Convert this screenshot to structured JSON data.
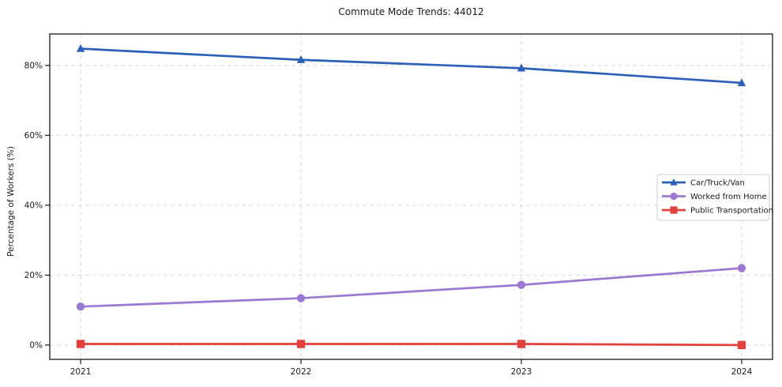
{
  "chart_data": {
    "type": "line",
    "title": "Commute Mode Trends: 44012",
    "xlabel": "",
    "ylabel": "Percentage of Workers (%)",
    "x": [
      2021,
      2022,
      2023,
      2024
    ],
    "x_tick_labels": [
      "2021",
      "2022",
      "2023",
      "2024"
    ],
    "y_ticks": [
      0,
      20,
      40,
      60,
      80
    ],
    "y_tick_labels": [
      "0%",
      "20%",
      "40%",
      "60%",
      "80%"
    ],
    "xlim": [
      2020.86,
      2024.14
    ],
    "ylim": [
      -4.1,
      89.0
    ],
    "grid": true,
    "grid_style": "dashed",
    "legend_position": "center-right",
    "series": [
      {
        "name": "Car/Truck/Van",
        "color": "#2b5fb8",
        "marker": "triangle",
        "values": [
          84.8,
          81.6,
          79.2,
          75.0
        ]
      },
      {
        "name": "Worked from Home",
        "color": "#9b79d2",
        "marker": "circle",
        "values": [
          11.0,
          13.4,
          17.2,
          22.0
        ]
      },
      {
        "name": "Public Transportation",
        "color": "#e2403d",
        "marker": "square",
        "values": [
          0.3,
          0.3,
          0.3,
          0.0
        ]
      }
    ],
    "colors": {
      "grid": "#d9d9d9",
      "axis_border": "#1a1a1a",
      "legend_border": "#cccccc",
      "background": "#ffffff"
    }
  }
}
